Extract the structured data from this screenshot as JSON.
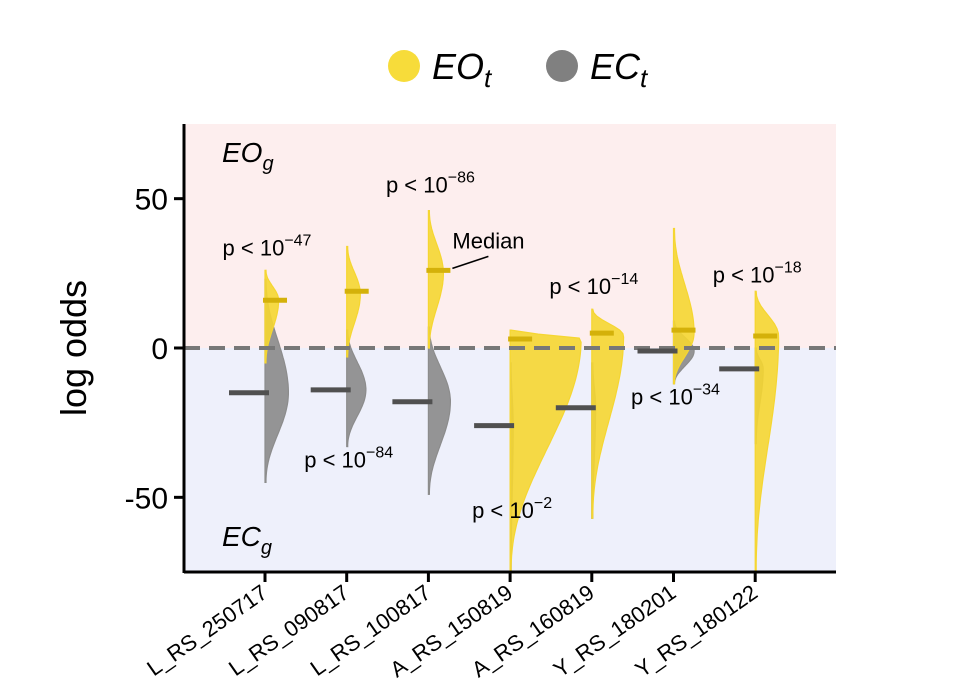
{
  "chart_data": {
    "type": "violin",
    "title": "",
    "ylabel": "log odds",
    "ylim": [
      -75,
      75
    ],
    "yticks": [
      {
        "value": 50,
        "label": "50"
      },
      {
        "value": 0,
        "label": "0"
      },
      {
        "value": -50,
        "label": "-50"
      }
    ],
    "reference_line": 0,
    "regions": [
      {
        "name": "EO",
        "sub": "g",
        "range": [
          0,
          75
        ],
        "color": "#fdeeee",
        "label_color": "#e07d7d"
      },
      {
        "name": "EC",
        "sub": "g",
        "range": [
          -75,
          0
        ],
        "color": "#eef0fb",
        "label_color": "#7b7be0"
      }
    ],
    "legend": [
      {
        "name": "EO",
        "sub": "t",
        "color": "#f7dc3a"
      },
      {
        "name": "EC",
        "sub": "t",
        "color": "#808080"
      }
    ],
    "colors": {
      "eo": "#f5d631",
      "eo_median": "#d4b10a",
      "ec": "#8c8c8c",
      "ec_median": "#505050",
      "ref": "#777777"
    },
    "categories": [
      "L_RS_250717",
      "L_RS_090817",
      "L_RS_100817",
      "A_RS_150819",
      "A_RS_160819",
      "Y_RS_180201",
      "Y_RS_180122"
    ],
    "series": [
      {
        "name": "EO_t",
        "medians": [
          16,
          19,
          26,
          3,
          5,
          6,
          4
        ],
        "violins": [
          {
            "min": -5,
            "max": 26,
            "mode": 16,
            "width": 0.09
          },
          {
            "min": -3,
            "max": 34,
            "mode": 18,
            "width": 0.09
          },
          {
            "min": 0,
            "max": 46,
            "mode": 25,
            "width": 0.1
          },
          {
            "min": -75,
            "max": 6,
            "mode": 3,
            "width": 0.5
          },
          {
            "min": -57,
            "max": 13,
            "mode": 4,
            "width": 0.22
          },
          {
            "min": -12,
            "max": 40,
            "mode": 5,
            "width": 0.14
          },
          {
            "min": -75,
            "max": 19,
            "mode": 4,
            "width": 0.16
          }
        ]
      },
      {
        "name": "EC_t",
        "medians": [
          -15,
          -14,
          -18,
          -26,
          -20,
          -1,
          -7
        ],
        "violins": [
          {
            "min": -45,
            "max": 23,
            "mode": -15,
            "width": 0.16
          },
          {
            "min": -33,
            "max": 6,
            "mode": -14,
            "width": 0.13
          },
          {
            "min": -49,
            "max": 7,
            "mode": -18,
            "width": 0.15
          },
          {
            "min": -75,
            "max": -5,
            "mode": -26,
            "width": 0.015
          },
          {
            "min": -57,
            "max": -5,
            "mode": -20,
            "width": 0.02
          },
          {
            "min": -12,
            "max": 9,
            "mode": -1,
            "width": 0.14
          },
          {
            "min": -32,
            "max": 0,
            "mode": -7,
            "width": 0.05
          }
        ]
      }
    ],
    "pvalue_annotations": [
      {
        "text": "p < 10",
        "exponent": "−47",
        "category": "L_RS_250717",
        "y": 31
      },
      {
        "text": "p < 10",
        "exponent": "−84",
        "category": "L_RS_090817",
        "y": -40
      },
      {
        "text": "p < 10",
        "exponent": "−86",
        "category": "L_RS_100817",
        "y": 52
      },
      {
        "text": "p < 10",
        "exponent": "−2",
        "category": "A_RS_150819",
        "y": -57
      },
      {
        "text": "p < 10",
        "exponent": "−14",
        "category": "A_RS_160819",
        "y": 18
      },
      {
        "text": "p < 10",
        "exponent": "−34",
        "category": "Y_RS_180201",
        "y": -19
      },
      {
        "text": "p < 10",
        "exponent": "−18",
        "category": "Y_RS_180122",
        "y": 22
      }
    ],
    "median_annotation": {
      "text": "Median",
      "category": "L_RS_100817",
      "series": "EO_t"
    }
  }
}
